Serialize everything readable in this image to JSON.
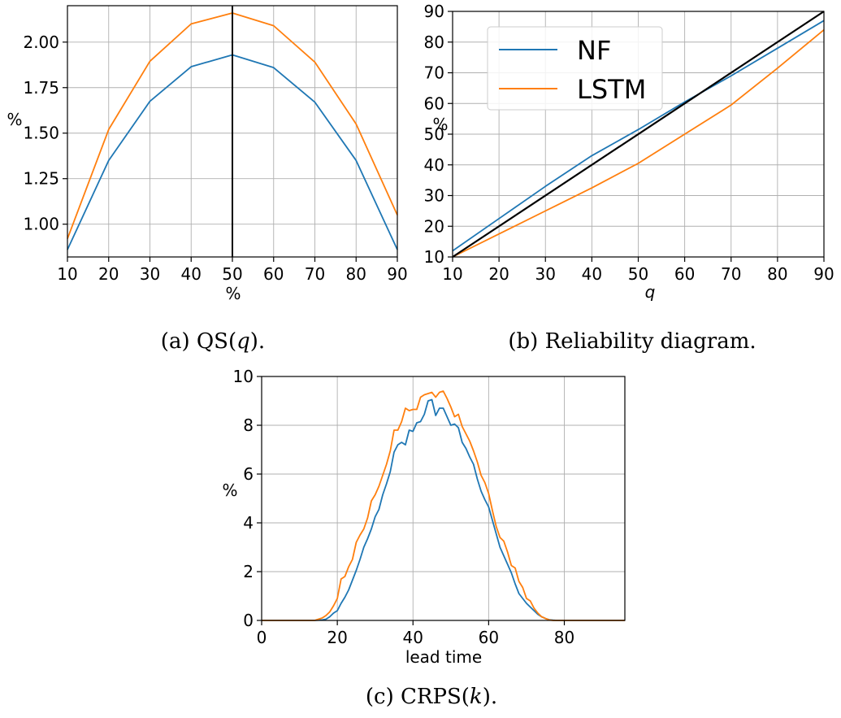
{
  "colors": {
    "nf": "#1f77b4",
    "lstm": "#ff7f0e",
    "reference": "#000000",
    "grid": "#b0b0b0"
  },
  "chart_data": [
    {
      "id": "a",
      "type": "line",
      "caption": "(a) QS(q).",
      "xlabel": "%",
      "ylabel": "%",
      "xlim": [
        10,
        90
      ],
      "ylim": [
        0.82,
        2.2
      ],
      "xticks": [
        10,
        20,
        30,
        40,
        50,
        60,
        70,
        80,
        90
      ],
      "yticks": [
        1.0,
        1.25,
        1.5,
        1.75,
        2.0
      ],
      "ytick_labels": [
        "1.00",
        "1.25",
        "1.50",
        "1.75",
        "2.00"
      ],
      "grid": true,
      "vline": 50,
      "x": [
        10,
        20,
        30,
        40,
        50,
        60,
        70,
        80,
        90
      ],
      "series": [
        {
          "key": "nf",
          "values": [
            0.86,
            1.35,
            1.675,
            1.865,
            1.93,
            1.86,
            1.67,
            1.35,
            0.86
          ]
        },
        {
          "key": "lstm",
          "values": [
            0.92,
            1.52,
            1.895,
            2.1,
            2.16,
            2.09,
            1.89,
            1.55,
            1.05
          ]
        }
      ]
    },
    {
      "id": "b",
      "type": "line",
      "caption": "(b) Reliability diagram.",
      "xlabel": "q",
      "ylabel": "%",
      "xlim": [
        10,
        90
      ],
      "ylim": [
        10,
        90
      ],
      "xticks": [
        10,
        20,
        30,
        40,
        50,
        60,
        70,
        80,
        90
      ],
      "yticks": [
        10,
        20,
        30,
        40,
        50,
        60,
        70,
        80,
        90
      ],
      "grid": true,
      "legend_position": "top-left",
      "x": [
        10,
        20,
        30,
        40,
        50,
        60,
        70,
        80,
        90
      ],
      "series": [
        {
          "key": "nf",
          "name": "NF",
          "values": [
            12,
            22.5,
            33,
            43,
            51.5,
            60.5,
            69,
            78,
            87
          ]
        },
        {
          "key": "lstm",
          "name": "LSTM",
          "values": [
            10,
            17.5,
            25,
            32.5,
            40.5,
            50,
            59.5,
            71.5,
            84
          ]
        }
      ],
      "reference_line": [
        [
          10,
          10
        ],
        [
          90,
          90
        ]
      ]
    },
    {
      "id": "c",
      "type": "line",
      "caption": "(c) CRPS(k).",
      "xlabel": "lead time",
      "ylabel": "%",
      "xlim": [
        0,
        96
      ],
      "ylim": [
        0,
        10
      ],
      "xticks": [
        0,
        20,
        40,
        60,
        80
      ],
      "yticks": [
        0,
        2,
        4,
        6,
        8,
        10
      ],
      "grid": true,
      "x": [
        0,
        2,
        4,
        6,
        8,
        10,
        12,
        14,
        16,
        17,
        18,
        19,
        20,
        21,
        22,
        23,
        24,
        25,
        26,
        27,
        28,
        29,
        30,
        31,
        32,
        33,
        34,
        35,
        36,
        37,
        38,
        39,
        40,
        41,
        42,
        43,
        44,
        45,
        46,
        47,
        48,
        49,
        50,
        51,
        52,
        53,
        54,
        55,
        56,
        57,
        58,
        59,
        60,
        61,
        62,
        63,
        64,
        65,
        66,
        67,
        68,
        69,
        70,
        71,
        72,
        73,
        74,
        75,
        76,
        77,
        78,
        80,
        85,
        90,
        96
      ],
      "series": [
        {
          "key": "nf",
          "values": [
            0,
            0,
            0,
            0,
            0,
            0,
            0,
            0,
            0.02,
            0.05,
            0.15,
            0.3,
            0.4,
            0.7,
            0.95,
            1.25,
            1.65,
            2.05,
            2.5,
            3.0,
            3.35,
            3.75,
            4.25,
            4.55,
            5.15,
            5.6,
            6.1,
            6.9,
            7.2,
            7.3,
            7.2,
            7.8,
            7.75,
            8.1,
            8.15,
            8.45,
            9.0,
            9.05,
            8.4,
            8.7,
            8.7,
            8.35,
            8.0,
            8.05,
            7.9,
            7.3,
            7.05,
            6.7,
            6.4,
            5.8,
            5.3,
            4.95,
            4.65,
            4.1,
            3.55,
            3.0,
            2.65,
            2.3,
            1.95,
            1.5,
            1.1,
            0.9,
            0.7,
            0.55,
            0.4,
            0.25,
            0.15,
            0.08,
            0.03,
            0.01,
            0,
            0,
            0,
            0,
            0
          ]
        },
        {
          "key": "lstm",
          "values": [
            0,
            0,
            0,
            0,
            0,
            0,
            0,
            0,
            0.1,
            0.2,
            0.35,
            0.6,
            0.9,
            1.7,
            1.8,
            2.2,
            2.5,
            3.2,
            3.5,
            3.75,
            4.2,
            4.9,
            5.15,
            5.5,
            5.95,
            6.4,
            6.95,
            7.8,
            7.8,
            8.15,
            8.7,
            8.6,
            8.65,
            8.65,
            9.15,
            9.25,
            9.3,
            9.35,
            9.15,
            9.35,
            9.4,
            9.1,
            8.75,
            8.35,
            8.45,
            7.95,
            7.65,
            7.35,
            6.95,
            6.5,
            5.95,
            5.65,
            5.2,
            4.5,
            3.85,
            3.4,
            3.25,
            2.8,
            2.25,
            2.15,
            1.6,
            1.35,
            0.9,
            0.8,
            0.5,
            0.3,
            0.15,
            0.08,
            0.02,
            0,
            0,
            0,
            0,
            0,
            0
          ]
        }
      ]
    }
  ]
}
